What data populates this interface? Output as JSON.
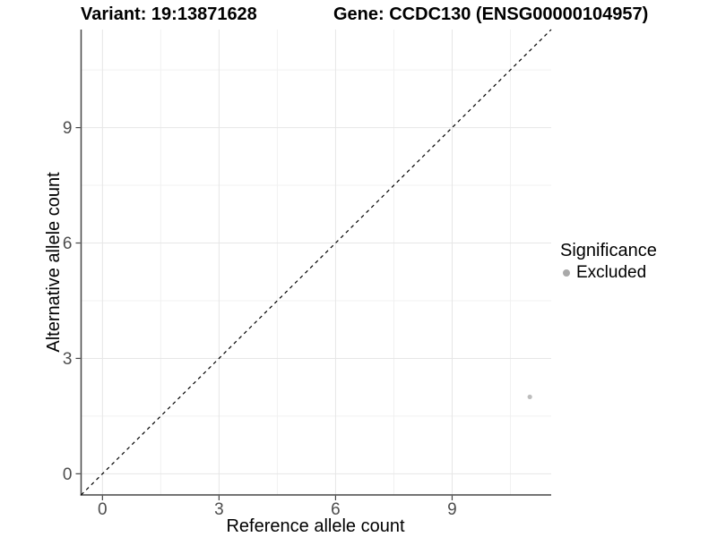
{
  "chart_data": {
    "type": "scatter",
    "titles": [
      "Variant: 19:13871628",
      "Gene: CCDC130 (ENSG00000104957)"
    ],
    "xlabel": "Reference allele count",
    "ylabel": "Alternative allele count",
    "xlim": [
      -0.55,
      11.55
    ],
    "ylim": [
      -0.55,
      11.55
    ],
    "x_ticks": [
      0,
      3,
      6,
      9
    ],
    "y_ticks": [
      0,
      3,
      6,
      9
    ],
    "x_minor_ticks": [
      1.5,
      4.5,
      7.5,
      10.5
    ],
    "y_minor_ticks": [
      1.5,
      4.5,
      7.5,
      10.5
    ],
    "grid": "major+minor",
    "points": [
      {
        "x": 11,
        "y": 2,
        "significance": "Excluded"
      }
    ],
    "identity_line": {
      "slope": 1,
      "intercept": 0,
      "style": "dashed"
    },
    "legend": {
      "title": "Significance",
      "position": "right",
      "entries": [
        {
          "label": "Excluded",
          "color": "#a9a9a9"
        }
      ]
    },
    "colors": {
      "point": "#bdbdbd",
      "identity_line": "#000000",
      "grid_major": "#e6e6e6",
      "grid_minor": "#f1f1f1",
      "axis": "#464646",
      "tick_label": "#4d4d4d",
      "text": "#000000",
      "background": "#ffffff"
    }
  }
}
